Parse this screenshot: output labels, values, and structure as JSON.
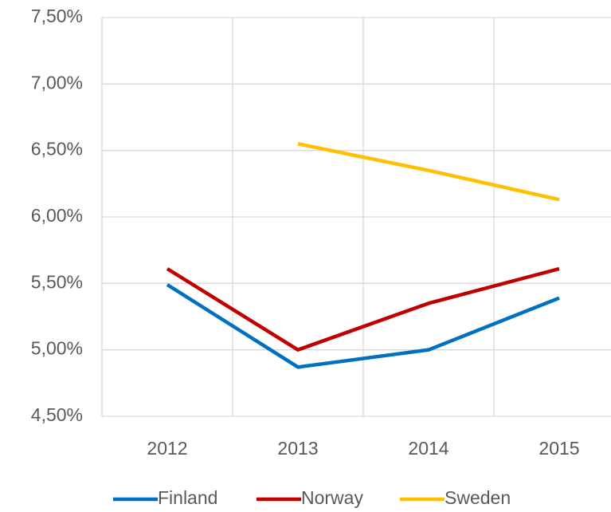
{
  "chart_data": {
    "type": "line",
    "categories": [
      "2012",
      "2013",
      "2014",
      "2015"
    ],
    "series": [
      {
        "name": "Finland",
        "color": "#0070c0",
        "values": [
          5.49,
          4.87,
          5.0,
          5.39
        ]
      },
      {
        "name": "Norway",
        "color": "#c00000",
        "values": [
          5.61,
          5.0,
          5.35,
          5.61
        ]
      },
      {
        "name": "Sweden",
        "color": "#ffc000",
        "values": [
          null,
          6.55,
          6.35,
          6.13
        ]
      }
    ],
    "ylim": [
      4.5,
      7.5
    ],
    "yticks": [
      {
        "value": 4.5,
        "label": "4,50%"
      },
      {
        "value": 5.0,
        "label": "5,00%"
      },
      {
        "value": 5.5,
        "label": "5,50%"
      },
      {
        "value": 6.0,
        "label": "6,00%"
      },
      {
        "value": 6.5,
        "label": "6,50%"
      },
      {
        "value": 7.0,
        "label": "7,00%"
      },
      {
        "value": 7.5,
        "label": "7,50%"
      }
    ],
    "grid": true,
    "legend": "bottom"
  }
}
